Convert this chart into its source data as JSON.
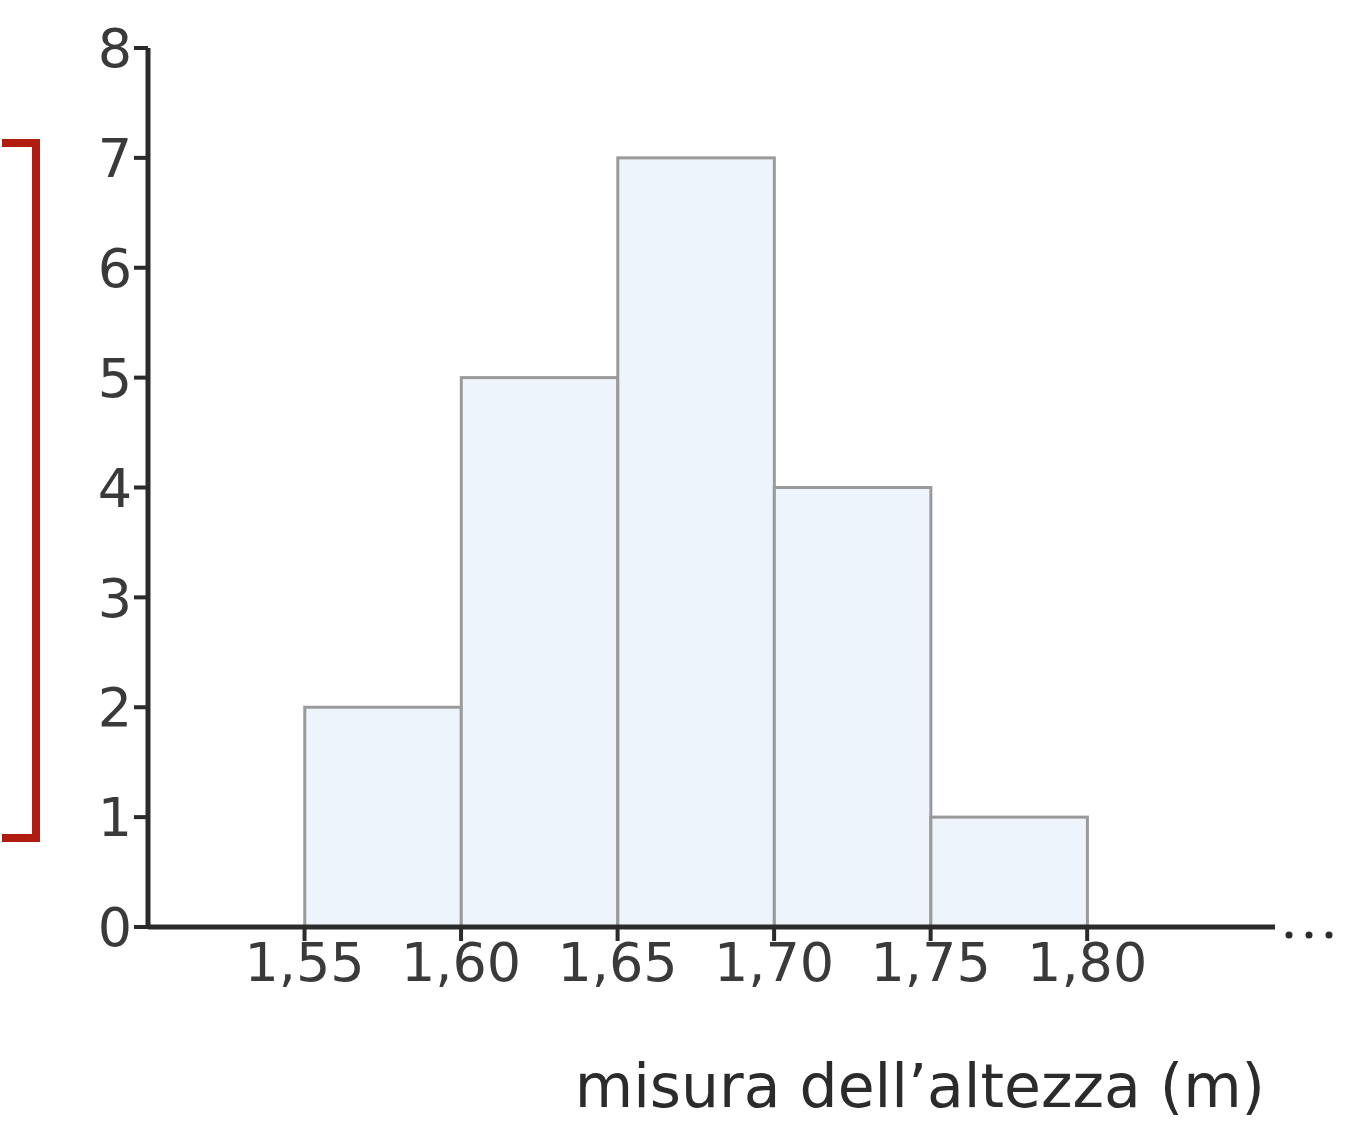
{
  "chart_data": {
    "type": "histogram",
    "xlabel": "misura dell’altezza (m)",
    "bins": [
      1.55,
      1.6,
      1.65,
      1.7,
      1.75,
      1.8
    ],
    "values": [
      2,
      5,
      7,
      4,
      1
    ],
    "color": "#eef4fb",
    "xlim": [
      1.5,
      1.86
    ],
    "xticks": [
      {
        "value": 1.55,
        "label": "1,55"
      },
      {
        "value": 1.6,
        "label": "1,60"
      },
      {
        "value": 1.65,
        "label": "1,65"
      },
      {
        "value": 1.7,
        "label": "1,70"
      },
      {
        "value": 1.75,
        "label": "1,75"
      },
      {
        "value": 1.8,
        "label": "1,80"
      }
    ],
    "ylim": [
      0,
      8
    ],
    "yticks": [
      0,
      1,
      2,
      3,
      4,
      5,
      6,
      7,
      8
    ],
    "grid": false,
    "legend": false
  }
}
